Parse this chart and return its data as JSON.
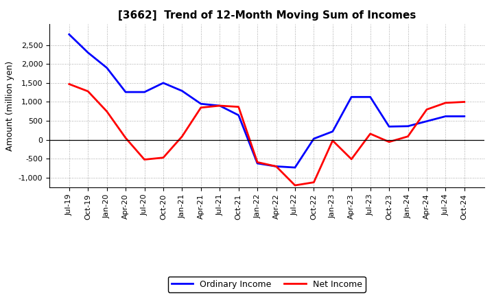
{
  "title": "[3662]  Trend of 12-Month Moving Sum of Incomes",
  "ylabel": "Amount (million yen)",
  "ylim": [
    -1250,
    3050
  ],
  "yticks": [
    -1000,
    -500,
    0,
    500,
    1000,
    1500,
    2000,
    2500
  ],
  "x_labels": [
    "Jul-19",
    "Oct-19",
    "Jan-20",
    "Apr-20",
    "Jul-20",
    "Oct-20",
    "Jan-21",
    "Apr-21",
    "Jul-21",
    "Oct-21",
    "Jan-22",
    "Apr-22",
    "Jul-22",
    "Oct-22",
    "Jan-23",
    "Apr-23",
    "Jul-23",
    "Oct-23",
    "Jan-24",
    "Apr-24",
    "Jul-24",
    "Oct-24"
  ],
  "ordinary_income": [
    2780,
    2300,
    1900,
    1260,
    1260,
    1500,
    1290,
    950,
    900,
    650,
    -620,
    -700,
    -730,
    30,
    220,
    1130,
    1130,
    350,
    360,
    490,
    620,
    620
  ],
  "net_income": [
    1470,
    1280,
    750,
    50,
    -520,
    -470,
    90,
    850,
    900,
    870,
    -590,
    -700,
    -1200,
    -1120,
    -20,
    -510,
    160,
    -55,
    90,
    800,
    975,
    1000
  ],
  "ordinary_income_color": "#0000ff",
  "net_income_color": "#ff0000",
  "legend_labels": [
    "Ordinary Income",
    "Net Income"
  ],
  "background_color": "#ffffff",
  "grid_color": "#888888",
  "title_fontsize": 11,
  "ylabel_fontsize": 9,
  "tick_fontsize": 8,
  "legend_fontsize": 9,
  "linewidth": 2.0
}
